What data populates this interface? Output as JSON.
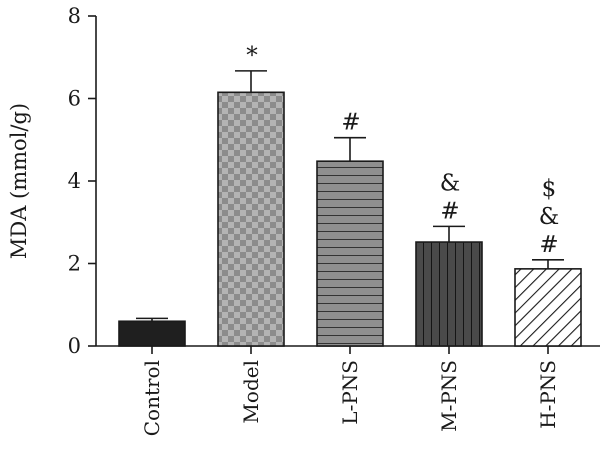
{
  "chart_data": {
    "type": "bar",
    "ylabel": "MDA (mmol/g)",
    "ylim": [
      0,
      8
    ],
    "yticks": [
      "0",
      "2",
      "4",
      "6",
      "8"
    ],
    "categories": [
      "Control",
      "Model",
      "L-PNS",
      "M-PNS",
      "H-PNS"
    ],
    "values": [
      0.6,
      6.15,
      4.48,
      2.52,
      1.87
    ],
    "errors": [
      0.07,
      0.52,
      0.57,
      0.38,
      0.22
    ],
    "annotations": [
      [],
      [
        "*"
      ],
      [
        "#"
      ],
      [
        "#",
        "&"
      ],
      [
        "#",
        "&",
        "$"
      ]
    ],
    "bar_styles": [
      {
        "pattern": "solid-black",
        "fill": "#1f1f1f"
      },
      {
        "pattern": "checker",
        "fill": "#a8a8a8"
      },
      {
        "pattern": "horizontal-lines",
        "fill": "#8f8f8f"
      },
      {
        "pattern": "vertical-lines",
        "fill": "#474747"
      },
      {
        "pattern": "diagonal-lines",
        "fill": "#ffffff"
      }
    ],
    "grid": false,
    "legend": "none"
  }
}
